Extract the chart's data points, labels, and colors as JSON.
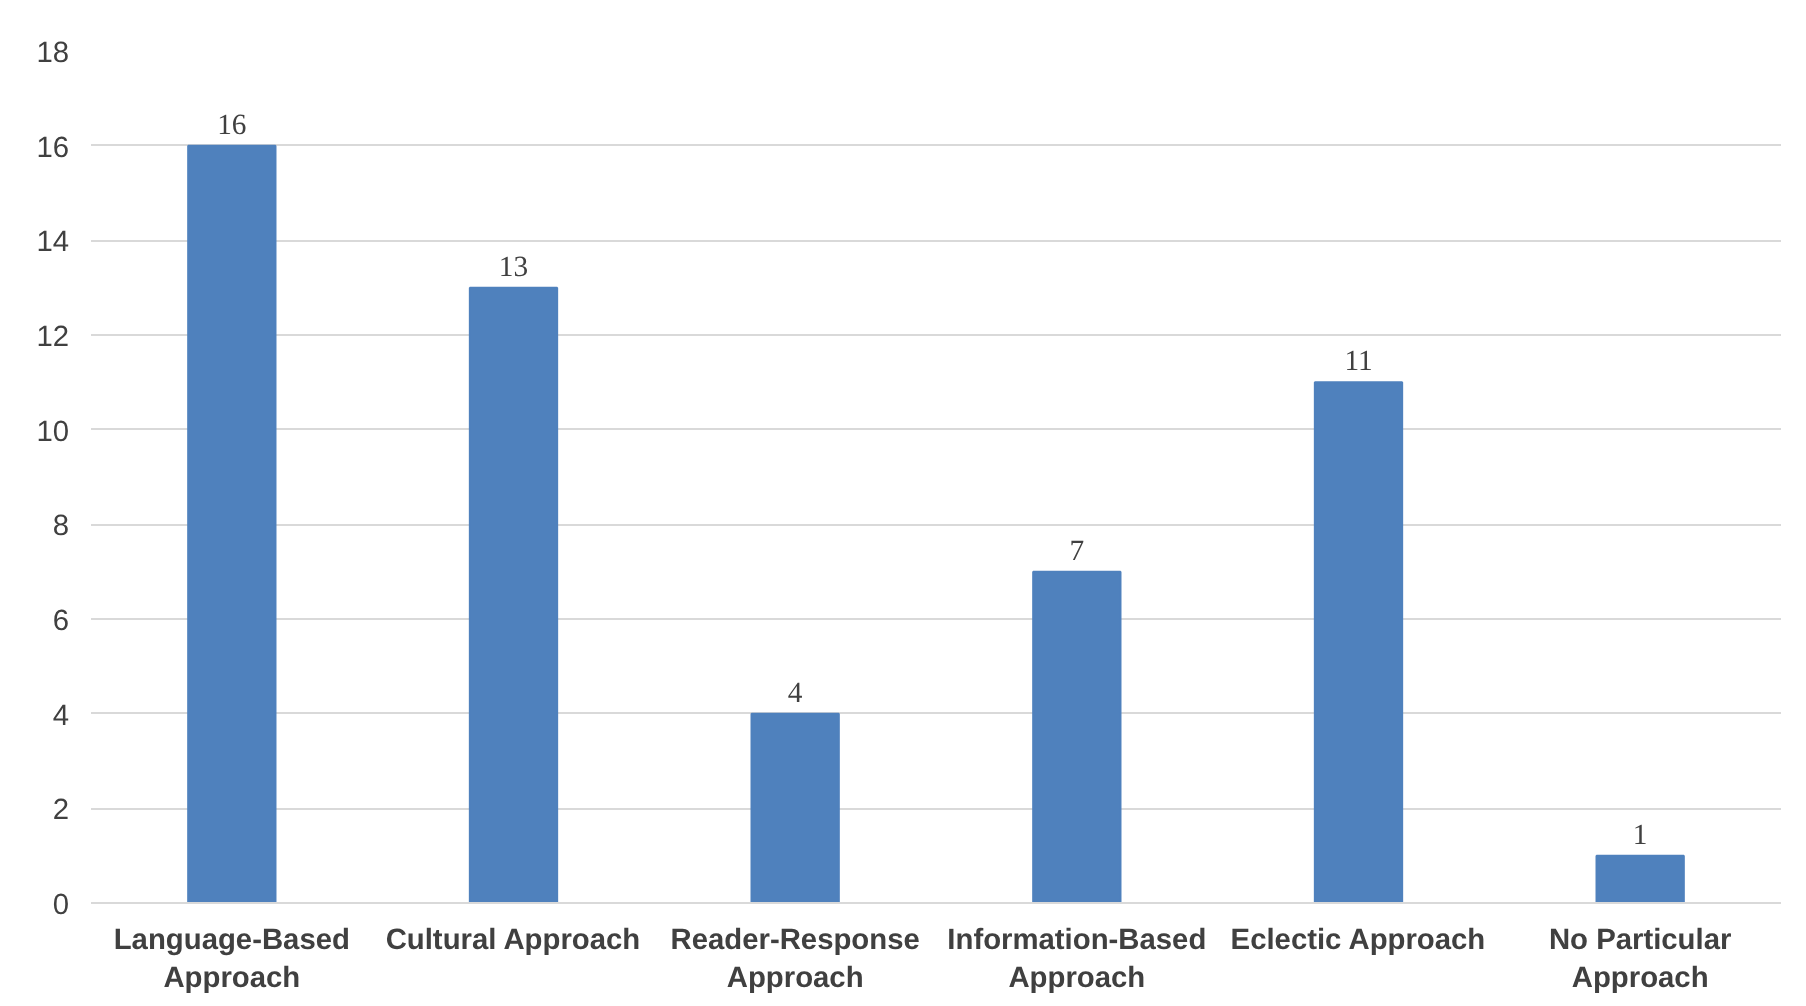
{
  "chart_data": {
    "type": "bar",
    "categories": [
      "Language-Based Approach",
      "Cultural Approach",
      "Reader-Response Approach",
      "Information-Based Approach",
      "Eclectic Approach",
      "No Particular Approach"
    ],
    "values": [
      16,
      13,
      4,
      7,
      11,
      1
    ],
    "color": "#4f81bd",
    "ylim": [
      0,
      18
    ],
    "yticks": [
      0,
      2,
      4,
      6,
      8,
      10,
      12,
      14,
      16,
      18
    ],
    "grid": "y",
    "data_labels": true
  }
}
